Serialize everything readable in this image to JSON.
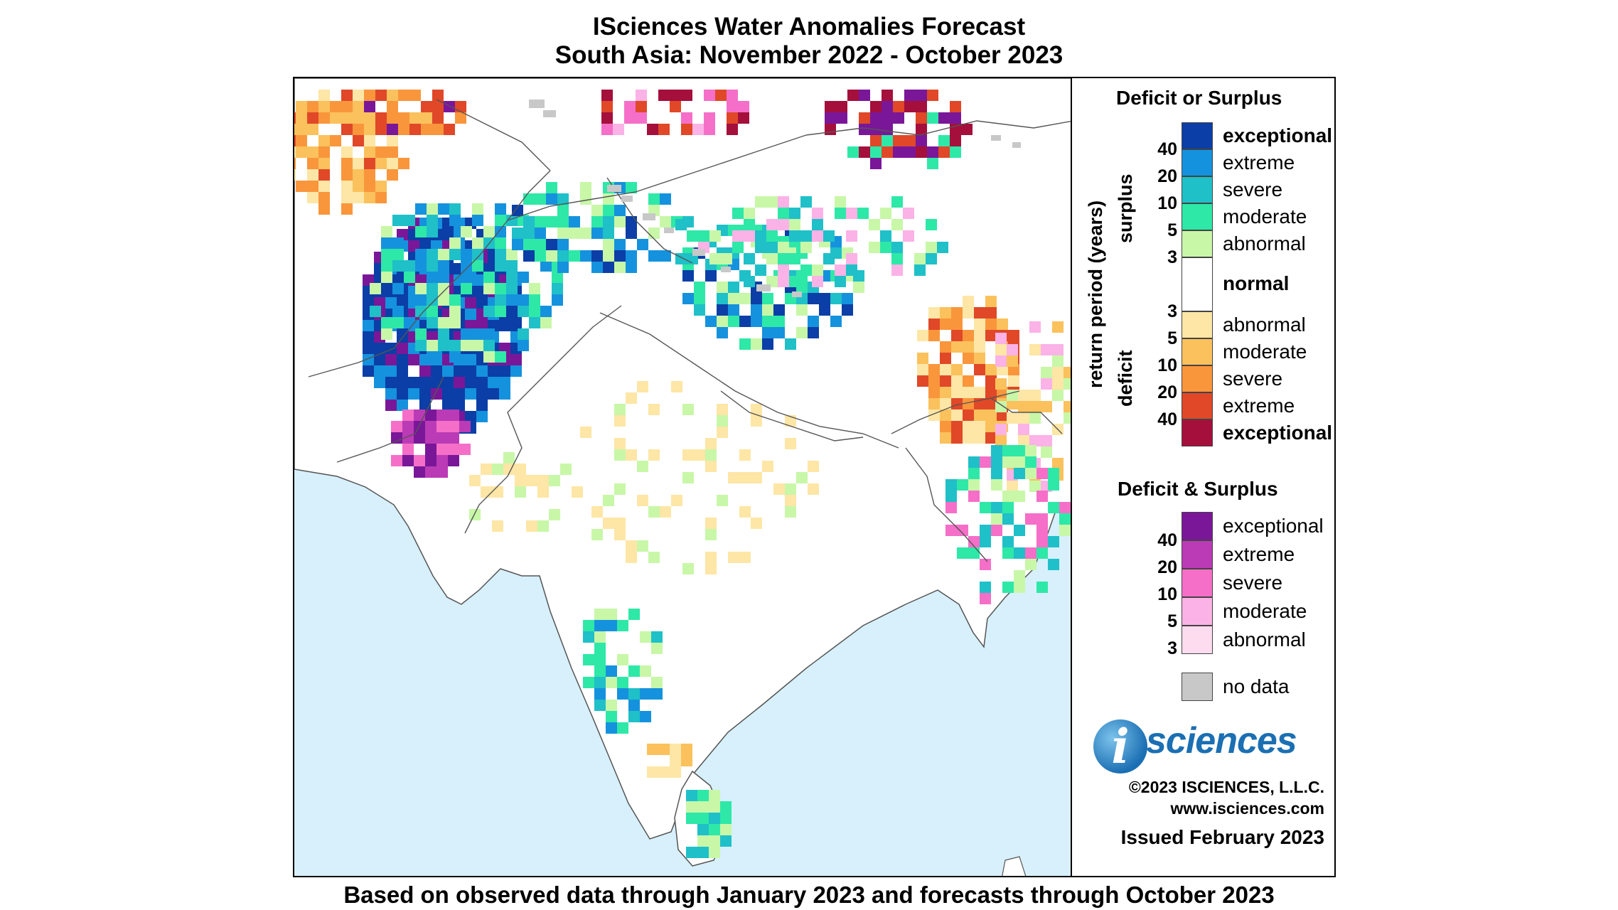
{
  "header": {
    "title": "ISciences Water Anomalies Forecast",
    "subtitle": "South Asia: November 2022 - October 2023"
  },
  "footer": {
    "note": "Based on observed data through January 2023 and forecasts through October 2023"
  },
  "legend": {
    "deficit_or_surplus": {
      "heading": "Deficit or Surplus",
      "axis_label": "return period (years)",
      "surplus_label": "surplus",
      "deficit_label": "deficit",
      "surplus": [
        {
          "label": "exceptional",
          "color": "#0b3ea6"
        },
        {
          "label": "extreme",
          "color": "#1592dd"
        },
        {
          "label": "severe",
          "color": "#1fc0c8"
        },
        {
          "label": "moderate",
          "color": "#2ee8a8"
        },
        {
          "label": "abnormal",
          "color": "#c8f7a8"
        }
      ],
      "normal": {
        "label": "normal",
        "color": "#ffffff"
      },
      "deficit": [
        {
          "label": "abnormal",
          "color": "#fde6a6"
        },
        {
          "label": "moderate",
          "color": "#fbc15c"
        },
        {
          "label": "severe",
          "color": "#f9963c"
        },
        {
          "label": "extreme",
          "color": "#e04828"
        },
        {
          "label": "exceptional",
          "color": "#a50f3c"
        }
      ],
      "surplus_ticks": [
        "40",
        "20",
        "10",
        "5",
        "3"
      ],
      "deficit_ticks": [
        "3",
        "5",
        "10",
        "20",
        "40"
      ]
    },
    "deficit_and_surplus": {
      "heading": "Deficit & Surplus",
      "items": [
        {
          "label": "exceptional",
          "color": "#7a1799"
        },
        {
          "label": "extreme",
          "color": "#bb3ab6"
        },
        {
          "label": "severe",
          "color": "#f56fc8"
        },
        {
          "label": "moderate",
          "color": "#fbb2e6"
        },
        {
          "label": "abnormal",
          "color": "#fddcef"
        }
      ],
      "ticks": [
        "40",
        "20",
        "10",
        "5",
        "3"
      ]
    },
    "no_data": {
      "label": "no data",
      "color": "#c8c8c8"
    }
  },
  "branding": {
    "logo_letter": "i",
    "logo_word": "sciences",
    "copyright": "©2023 ISCIENCES, L.L.C.",
    "website": "www.isciences.com",
    "issued": "Issued February 2023"
  },
  "map": {
    "ocean_color": "#d7f0fb",
    "land_color": "#ffffff"
  }
}
